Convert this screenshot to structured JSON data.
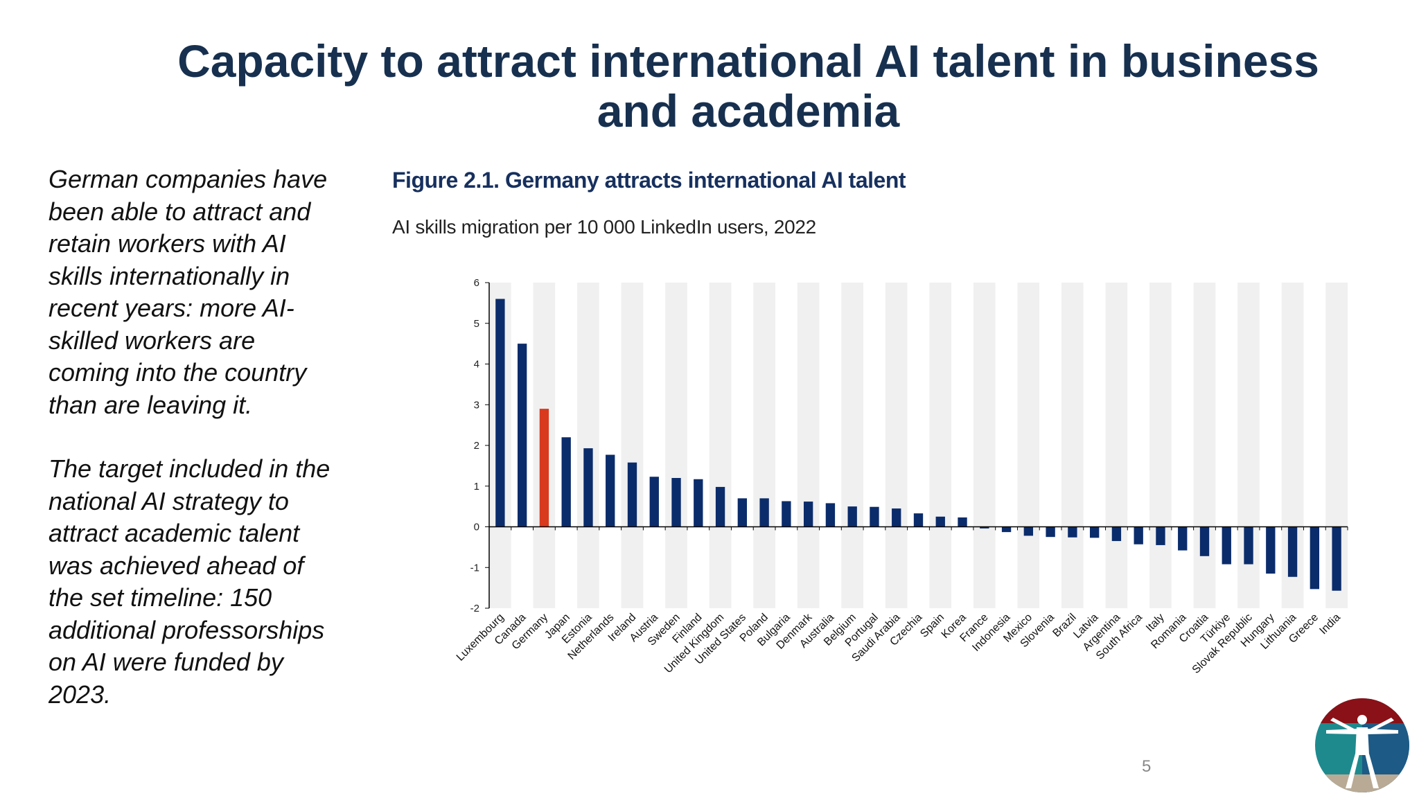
{
  "slide": {
    "title": "Capacity to attract international AI talent in business and academia",
    "paragraphs": [
      "German companies have been able to attract and retain workers with AI skills internationally in recent years: more AI-skilled workers are coming into the country than are leaving it.",
      "The target included in the national AI strategy to attract academic talent was achieved ahead of the set timeline: 150 additional professorships on AI were funded by 2023."
    ],
    "page_number": "5",
    "logo_icon": "vitruvian-man-logo-icon"
  },
  "figure": {
    "title": "Figure 2.1. Germany attracts international AI talent",
    "subtitle": "AI skills migration per 10 000 LinkedIn users, 2022"
  },
  "chart_data": {
    "type": "bar",
    "title": "Figure 2.1. Germany attracts international AI talent",
    "subtitle": "AI skills migration per 10 000 LinkedIn users, 2022",
    "xlabel": "",
    "ylabel": "",
    "ylim": [
      -2,
      6
    ],
    "yticks": [
      -2,
      -1,
      0,
      1,
      2,
      3,
      4,
      5,
      6
    ],
    "grid": "alternating vertical bands",
    "colors": {
      "bar": "#0b2c6b",
      "highlight": "#d9391d",
      "band_light": "#f0f0f0",
      "band_white": "#ffffff"
    },
    "highlight_category": "Germany",
    "categories": [
      "Luxembourg",
      "Canada",
      "Germany",
      "Japan",
      "Estonia",
      "Netherlands",
      "Ireland",
      "Austria",
      "Sweden",
      "Finland",
      "United Kingdom",
      "United States",
      "Poland",
      "Bulgaria",
      "Denmark",
      "Australia",
      "Belgium",
      "Portugal",
      "Saudi Arabia",
      "Czechia",
      "Spain",
      "Korea",
      "France",
      "Indonesia",
      "Mexico",
      "Slovenia",
      "Brazil",
      "Latvia",
      "Argentina",
      "South Africa",
      "Italy",
      "Romania",
      "Croatia",
      "Türkiye",
      "Slovak Republic",
      "Hungary",
      "Lithuania",
      "Greece",
      "India"
    ],
    "values": [
      5.6,
      4.5,
      2.9,
      2.2,
      1.93,
      1.77,
      1.58,
      1.23,
      1.2,
      1.17,
      0.98,
      0.7,
      0.7,
      0.63,
      0.62,
      0.58,
      0.5,
      0.49,
      0.45,
      0.33,
      0.25,
      0.23,
      -0.04,
      -0.13,
      -0.22,
      -0.25,
      -0.26,
      -0.27,
      -0.35,
      -0.43,
      -0.45,
      -0.58,
      -0.72,
      -0.92,
      -0.92,
      -1.15,
      -1.23,
      -1.53,
      -1.57
    ]
  }
}
